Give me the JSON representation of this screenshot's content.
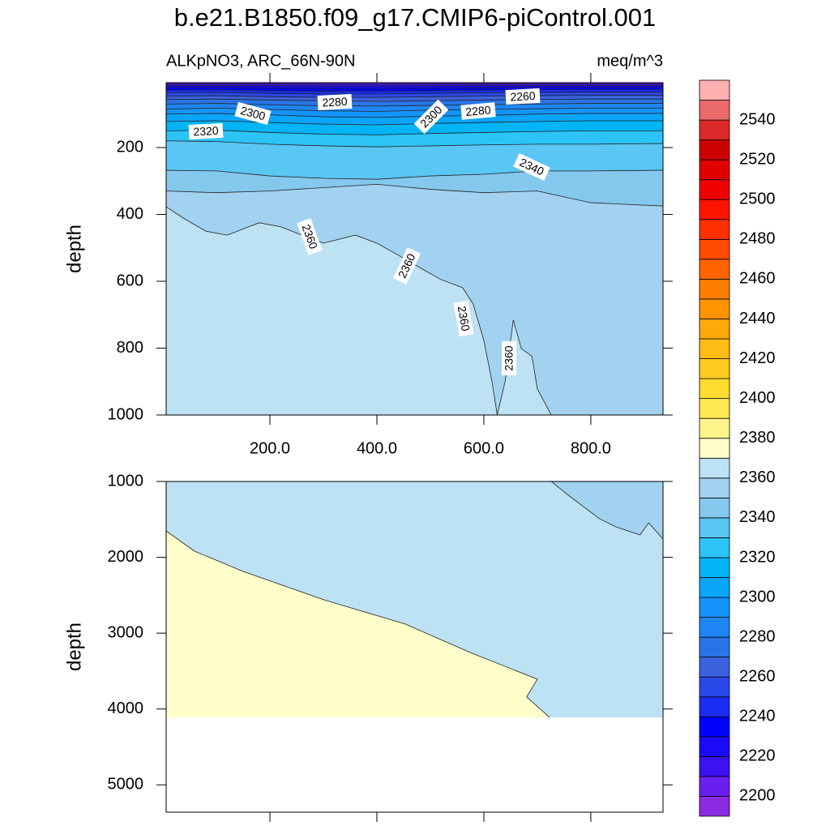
{
  "title": "b.e21.B1850.f09_g17.CMIP6-piControl.001",
  "chart_data": [
    {
      "type": "contour",
      "subtitle_left": "ALKpNO3, ARC_66N-90N",
      "subtitle_right": "meq/m^3",
      "y_label": "depth",
      "xlim": [
        6,
        935
      ],
      "ylim": [
        6,
        1000
      ],
      "y_reversed": true,
      "data_bottom": 1000,
      "xticks": [
        {
          "value": 200,
          "label": "200.0"
        },
        {
          "value": 400,
          "label": "400.0"
        },
        {
          "value": 600,
          "label": "600.0"
        },
        {
          "value": 800,
          "label": "800.0"
        }
      ],
      "yticks": [
        200,
        400,
        600,
        800,
        1000
      ],
      "base_level": 2360,
      "contours": [
        {
          "level": 2360,
          "fill": "above",
          "x": [
            6,
            40,
            80,
            120,
            180,
            220,
            260,
            300,
            360,
            400,
            440,
            480,
            520,
            560,
            580,
            600,
            615,
            625,
            640,
            655,
            670,
            690,
            700,
            726
          ],
          "y": [
            377,
            413,
            450,
            462,
            425,
            437,
            462,
            486,
            462,
            486,
            522,
            559,
            595,
            619,
            668,
            777,
            898,
            1000,
            898,
            716,
            801,
            825,
            922,
            1000
          ]
        },
        {
          "level": 2350,
          "fill": "above",
          "x": [
            6,
            100,
            200,
            300,
            400,
            500,
            600,
            700,
            800,
            935
          ],
          "y": [
            330,
            335,
            330,
            320,
            310,
            325,
            335,
            330,
            365,
            375
          ]
        },
        {
          "level": 2340,
          "fill": "above",
          "x": [
            6,
            100,
            200,
            300,
            400,
            500,
            600,
            700,
            800,
            935
          ],
          "y": [
            268,
            270,
            285,
            292,
            295,
            285,
            280,
            270,
            270,
            268
          ]
        },
        {
          "level": 2330,
          "fill": "above",
          "x": [
            6,
            100,
            200,
            300,
            400,
            500,
            600,
            700,
            800,
            935
          ],
          "y": [
            180,
            182,
            190,
            195,
            198,
            195,
            192,
            190,
            190,
            188
          ]
        },
        {
          "level": 2320,
          "fill": "above",
          "x": [
            6,
            100,
            200,
            300,
            400,
            500,
            600,
            700,
            800,
            935
          ],
          "y": [
            150,
            148,
            155,
            160,
            162,
            158,
            155,
            152,
            150,
            150
          ]
        },
        {
          "level": 2310,
          "fill": "above",
          "x": [
            6,
            100,
            200,
            300,
            400,
            500,
            600,
            700,
            800,
            935
          ],
          "y": [
            122,
            120,
            125,
            130,
            132,
            128,
            125,
            122,
            120,
            120
          ]
        },
        {
          "level": 2300,
          "fill": "above",
          "x": [
            6,
            100,
            200,
            300,
            400,
            500,
            600,
            700,
            800,
            935
          ],
          "y": [
            100,
            98,
            102,
            108,
            110,
            106,
            104,
            100,
            98,
            98
          ]
        },
        {
          "level": 2290,
          "fill": "above",
          "x": [
            6,
            100,
            200,
            300,
            400,
            500,
            600,
            700,
            800,
            935
          ],
          "y": [
            85,
            82,
            86,
            90,
            92,
            88,
            86,
            84,
            82,
            82
          ]
        },
        {
          "level": 2280,
          "fill": "above",
          "x": [
            6,
            100,
            200,
            300,
            400,
            500,
            600,
            700,
            800,
            935
          ],
          "y": [
            70,
            68,
            72,
            75,
            76,
            74,
            72,
            70,
            68,
            68
          ]
        },
        {
          "level": 2270,
          "fill": "above",
          "x": [
            6,
            100,
            200,
            300,
            400,
            500,
            600,
            700,
            800,
            935
          ],
          "y": [
            56,
            55,
            58,
            60,
            62,
            60,
            58,
            56,
            55,
            55
          ]
        },
        {
          "level": 2260,
          "fill": "above",
          "x": [
            6,
            100,
            200,
            300,
            400,
            500,
            600,
            700,
            800,
            935
          ],
          "y": [
            46,
            45,
            48,
            50,
            50,
            48,
            46,
            45,
            44,
            44
          ]
        },
        {
          "level": 2250,
          "fill": "above",
          "x": [
            6,
            100,
            200,
            300,
            400,
            500,
            600,
            700,
            800,
            935
          ],
          "y": [
            36,
            35,
            38,
            40,
            40,
            38,
            36,
            35,
            34,
            34
          ]
        },
        {
          "level": 2240,
          "fill": "above",
          "x": [
            6,
            100,
            200,
            300,
            400,
            500,
            600,
            700,
            800,
            935
          ],
          "y": [
            28,
            27,
            30,
            31,
            31,
            30,
            28,
            27,
            26,
            26
          ]
        },
        {
          "level": 2230,
          "fill": "above",
          "x": [
            6,
            100,
            200,
            300,
            400,
            500,
            600,
            700,
            800,
            935
          ],
          "y": [
            20,
            20,
            22,
            23,
            23,
            22,
            21,
            20,
            20,
            20
          ]
        },
        {
          "level": 2220,
          "fill": "above",
          "x": [
            6,
            100,
            200,
            300,
            400,
            500,
            600,
            700,
            800,
            935
          ],
          "y": [
            14,
            14,
            15,
            16,
            16,
            15,
            14,
            14,
            14,
            14
          ]
        },
        {
          "level": 2210,
          "fill": "above",
          "x": [
            6,
            100,
            200,
            300,
            400,
            500,
            600,
            700,
            800,
            935
          ],
          "y": [
            10,
            10,
            10,
            11,
            11,
            10,
            10,
            10,
            10,
            10
          ]
        }
      ],
      "contour_labels": [
        2300,
        2280,
        2300,
        2280,
        2260,
        2320,
        2340,
        2360,
        2360,
        2360,
        2360
      ]
    },
    {
      "type": "contour",
      "y_label": "depth",
      "xlim": [
        6,
        935
      ],
      "ylim": [
        1000,
        5360
      ],
      "y_reversed": true,
      "data_bottom": 4110,
      "yticks": [
        1000,
        2000,
        3000,
        4000,
        5000
      ],
      "base_level": 2360,
      "contours": [
        {
          "level": 2360,
          "fill": "above",
          "x": [
            726,
            756,
            786,
            816,
            847,
            892,
            908,
            935
          ],
          "y": [
            1000,
            1171,
            1331,
            1491,
            1598,
            1705,
            1545,
            1759
          ]
        },
        {
          "level": 2370,
          "fill": "below",
          "x": [
            6,
            59,
            150,
            301,
            453,
            574,
            700,
            680,
            723
          ],
          "y": [
            1652,
            1919,
            2186,
            2560,
            2880,
            3254,
            3607,
            3842,
            4110
          ]
        }
      ]
    }
  ],
  "colorbar": {
    "levels": [
      2200,
      2210,
      2220,
      2230,
      2240,
      2250,
      2260,
      2270,
      2280,
      2290,
      2300,
      2310,
      2320,
      2330,
      2340,
      2350,
      2360,
      2370,
      2380,
      2390,
      2400,
      2410,
      2420,
      2430,
      2440,
      2450,
      2460,
      2470,
      2480,
      2490,
      2500,
      2510,
      2520,
      2530,
      2540,
      2550
    ],
    "colors": [
      "#8a2be2",
      "#6a1ef0",
      "#3c12f2",
      "#1a0af8",
      "#0000ff",
      "#1a2cf2",
      "#2a48e8",
      "#3a62de",
      "#2a74e8",
      "#1e86f4",
      "#1494fa",
      "#0aa4fa",
      "#00b4f6",
      "#2cc4f6",
      "#5ac6f4",
      "#84c8ee",
      "#a2d2f0",
      "#bde2f3",
      "#ffffcc",
      "#fff48c",
      "#ffe850",
      "#ffdc30",
      "#ffcc20",
      "#ffbc14",
      "#ffa80a",
      "#ff9400",
      "#ff7e00",
      "#ff6400",
      "#ff4a00",
      "#ff3000",
      "#ff1400",
      "#f00000",
      "#e00000",
      "#cc0000",
      "#dc2a2a",
      "#ea6a6a",
      "#ffb0b0"
    ],
    "ticks": [
      2200,
      2220,
      2240,
      2260,
      2280,
      2300,
      2320,
      2340,
      2360,
      2380,
      2400,
      2420,
      2440,
      2460,
      2480,
      2500,
      2520,
      2540
    ]
  }
}
